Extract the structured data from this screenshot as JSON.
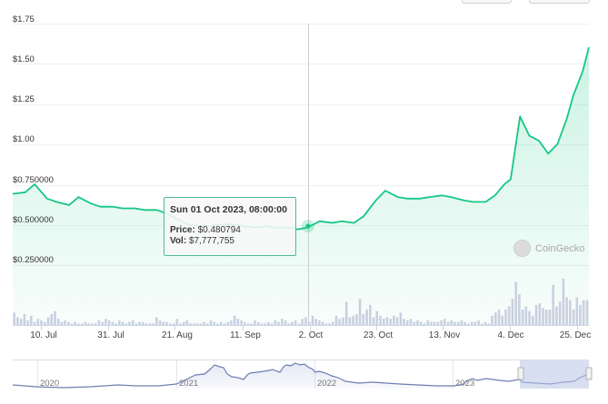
{
  "chart_data": {
    "type": "line",
    "title": "",
    "xlabel": "",
    "ylabel": "",
    "ylim": [
      0,
      1.75
    ],
    "y_ticks": [
      "$1.75",
      "$1.50",
      "$1.25",
      "$1.00",
      "$0.750000",
      "$0.500000",
      "$0.250000"
    ],
    "x_ticks": [
      "10. Jul",
      "31. Jul",
      "21. Aug",
      "11. Sep",
      "2. Oct",
      "23. Oct",
      "13. Nov",
      "4. Dec",
      "25. Dec"
    ],
    "series": [
      {
        "name": "Price",
        "color": "#16c784",
        "x": [
          "2023-06-29",
          "2023-07-03",
          "2023-07-06",
          "2023-07-10",
          "2023-07-13",
          "2023-07-17",
          "2023-07-20",
          "2023-07-24",
          "2023-07-27",
          "2023-07-31",
          "2023-08-03",
          "2023-08-07",
          "2023-08-10",
          "2023-08-14",
          "2023-08-17",
          "2023-08-21",
          "2023-08-24",
          "2023-08-28",
          "2023-08-31",
          "2023-09-04",
          "2023-09-07",
          "2023-09-11",
          "2023-09-14",
          "2023-09-18",
          "2023-09-21",
          "2023-09-25",
          "2023-09-28",
          "2023-10-01",
          "2023-10-05",
          "2023-10-09",
          "2023-10-12",
          "2023-10-16",
          "2023-10-19",
          "2023-10-23",
          "2023-10-26",
          "2023-10-30",
          "2023-11-02",
          "2023-11-06",
          "2023-11-09",
          "2023-11-13",
          "2023-11-16",
          "2023-11-20",
          "2023-11-23",
          "2023-11-27",
          "2023-11-30",
          "2023-12-03",
          "2023-12-05",
          "2023-12-08",
          "2023-12-11",
          "2023-12-14",
          "2023-12-17",
          "2023-12-20",
          "2023-12-23",
          "2023-12-25",
          "2023-12-28",
          "2023-12-30"
        ],
        "values": [
          0.69,
          0.7,
          0.75,
          0.66,
          0.64,
          0.62,
          0.67,
          0.63,
          0.61,
          0.61,
          0.6,
          0.6,
          0.59,
          0.59,
          0.57,
          0.53,
          0.5,
          0.49,
          0.49,
          0.5,
          0.5,
          0.49,
          0.48,
          0.49,
          0.48,
          0.48,
          0.47,
          0.48,
          0.52,
          0.51,
          0.52,
          0.51,
          0.55,
          0.65,
          0.71,
          0.67,
          0.66,
          0.66,
          0.67,
          0.68,
          0.67,
          0.65,
          0.64,
          0.64,
          0.68,
          0.75,
          0.78,
          1.17,
          1.05,
          1.02,
          0.94,
          1.0,
          1.16,
          1.3,
          1.45,
          1.6
        ]
      },
      {
        "name": "Volume",
        "type": "bar",
        "color": "#c8cfdf"
      }
    ],
    "tooltip": {
      "title": "Sun 01 Oct 2023, 08:00:00",
      "price_label": "Price:",
      "price_value": "$0.480794",
      "vol_label": "Vol:",
      "vol_value": "$7,777,755"
    },
    "navigator": {
      "year_labels": [
        "2020",
        "2021",
        "2022",
        "2023"
      ],
      "selected_range": "Jul 2023 - Dec 2023"
    }
  },
  "watermark": "CoinGecko"
}
